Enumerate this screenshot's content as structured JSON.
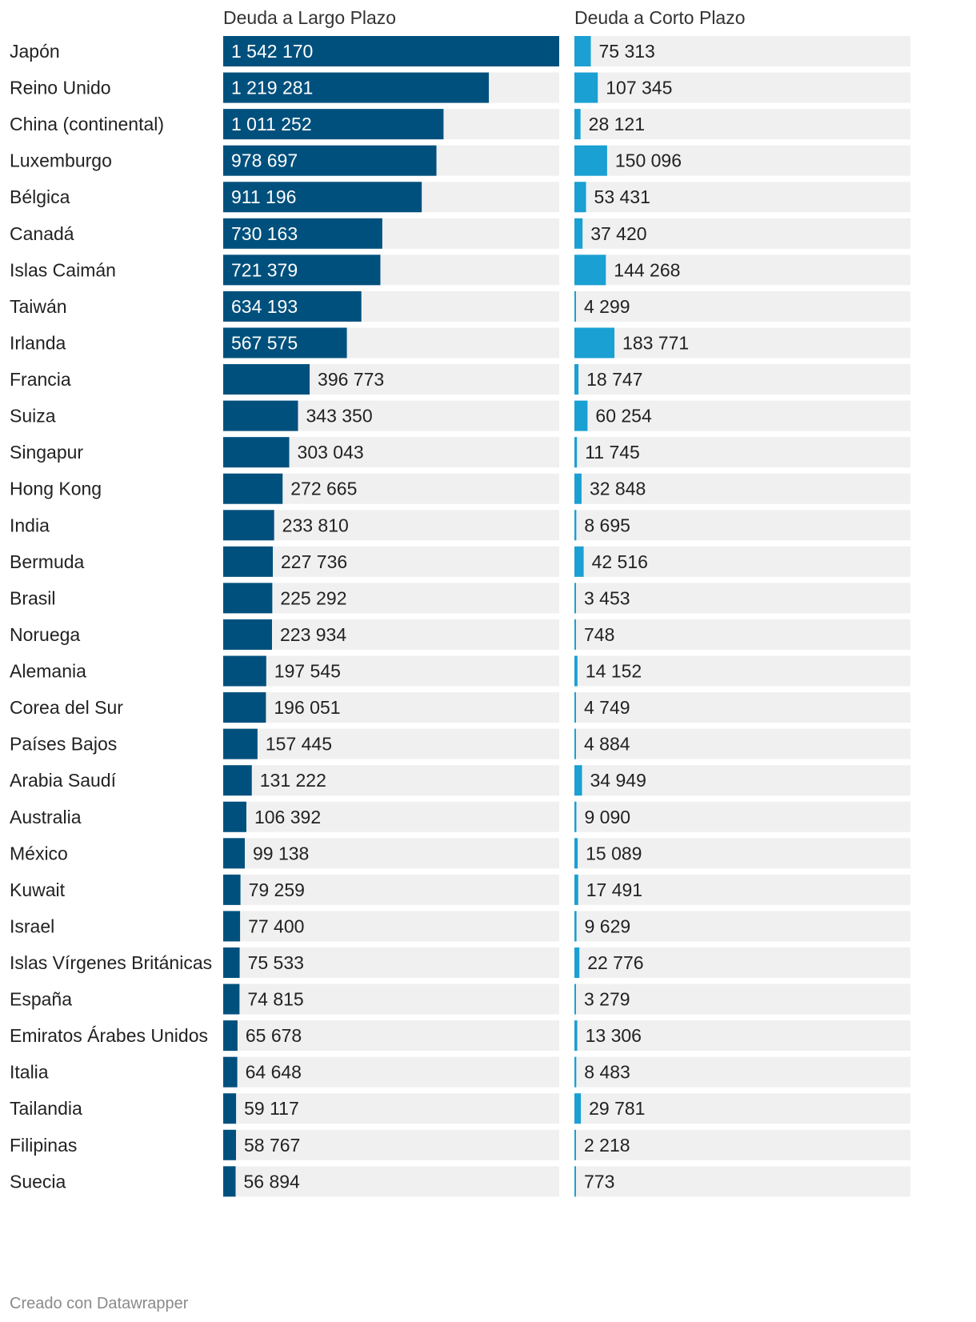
{
  "chart_data": {
    "type": "bar",
    "orientation": "horizontal",
    "series": [
      {
        "name": "Deuda a Largo Plazo",
        "color": "#00507d",
        "values": [
          1542170,
          1219281,
          1011252,
          978697,
          911196,
          730163,
          721379,
          634193,
          567575,
          396773,
          343350,
          303043,
          272665,
          233810,
          227736,
          225292,
          223934,
          197545,
          196051,
          157445,
          131222,
          106392,
          99138,
          79259,
          77400,
          75533,
          74815,
          65678,
          64648,
          59117,
          58767,
          56894
        ],
        "labels": [
          "1 542 170",
          "1 219 281",
          "1 011 252",
          "978 697",
          "911 196",
          "730 163",
          "721 379",
          "634 193",
          "567 575",
          "396 773",
          "343 350",
          "303 043",
          "272 665",
          "233 810",
          "227 736",
          "225 292",
          "223 934",
          "197 545",
          "196 051",
          "157 445",
          "131 222",
          "106 392",
          "99 138",
          "79 259",
          "77 400",
          "75 533",
          "74 815",
          "65 678",
          "64 648",
          "59 117",
          "58 767",
          "56 894"
        ],
        "xlim": [
          0,
          1542170
        ]
      },
      {
        "name": "Deuda a Corto Plazo",
        "color": "#1aa0d2",
        "values": [
          75313,
          107345,
          28121,
          150096,
          53431,
          37420,
          144268,
          4299,
          183771,
          18747,
          60254,
          11745,
          32848,
          8695,
          42516,
          3453,
          748,
          14152,
          4749,
          4884,
          34949,
          9090,
          15089,
          17491,
          9629,
          22776,
          3279,
          13306,
          8483,
          29781,
          2218,
          773
        ],
        "labels": [
          "75 313",
          "107 345",
          "28 121",
          "150 096",
          "53 431",
          "37 420",
          "144 268",
          "4 299",
          "183 771",
          "18 747",
          "60 254",
          "11 745",
          "32 848",
          "8 695",
          "42 516",
          "3 453",
          "748",
          "14 152",
          "4 749",
          "4 884",
          "34 949",
          "9 090",
          "15 089",
          "17 491",
          "9 629",
          "22 776",
          "3 279",
          "13 306",
          "8 483",
          "29 781",
          "2 218",
          "773"
        ],
        "xlim": [
          0,
          1542170
        ]
      }
    ],
    "categories": [
      "Japón",
      "Reino Unido",
      "China (continental)",
      "Luxemburgo",
      "Bélgica",
      "Canadá",
      "Islas Caimán",
      "Taiwán",
      "Irlanda",
      "Francia",
      "Suiza",
      "Singapur",
      "Hong Kong",
      "India",
      "Bermuda",
      "Brasil",
      "Noruega",
      "Alemania",
      "Corea del Sur",
      "Países Bajos",
      "Arabia Saudí",
      "Australia",
      "México",
      "Kuwait",
      "Israel",
      "Islas Vírgenes Británicas",
      "España",
      "Emiratos Árabes Unidos",
      "Italia",
      "Tailandia",
      "Filipinas",
      "Suecia"
    ],
    "background_color": "#f0f0f0",
    "label_color_inside": "#ffffff",
    "label_color_outside": "#222222"
  },
  "footer": "Creado con Datawrapper"
}
